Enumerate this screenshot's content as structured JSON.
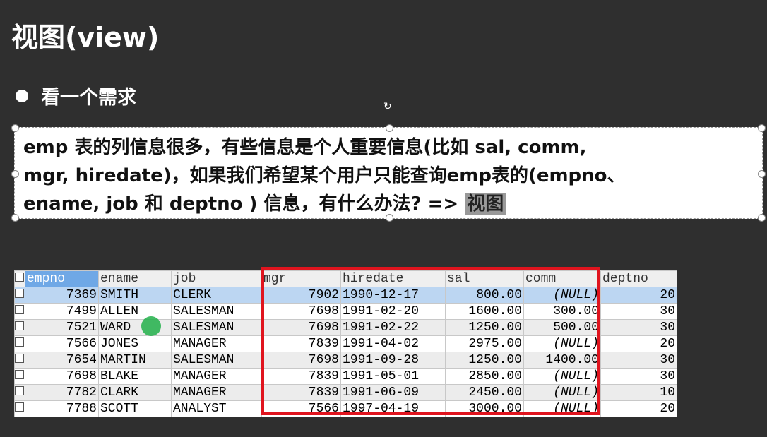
{
  "slide": {
    "title": "视图(view)",
    "bullet": "看一个需求",
    "text_lines": [
      "emp 表的列信息很多，有些信息是个人重要信息(比如 sal, comm,",
      "mgr, hiredate)，如果我们希望某个用户只能查询emp表的(empno、",
      "ename, job 和 deptno ) 信息，有什么办法? => "
    ],
    "highlight": "视图"
  },
  "table": {
    "columns": [
      "empno",
      "ename",
      "job",
      "mgr",
      "hiredate",
      "sal",
      "comm",
      "deptno"
    ],
    "rows": [
      [
        "7369",
        "SMITH",
        "CLERK",
        "7902",
        "1990-12-17",
        "800.00",
        "(NULL)",
        "20"
      ],
      [
        "7499",
        "ALLEN",
        "SALESMAN",
        "7698",
        "1991-02-20",
        "1600.00",
        "300.00",
        "30"
      ],
      [
        "7521",
        "WARD",
        "SALESMAN",
        "7698",
        "1991-02-22",
        "1250.00",
        "500.00",
        "30"
      ],
      [
        "7566",
        "JONES",
        "MANAGER",
        "7839",
        "1991-04-02",
        "2975.00",
        "(NULL)",
        "20"
      ],
      [
        "7654",
        "MARTIN",
        "SALESMAN",
        "7698",
        "1991-09-28",
        "1250.00",
        "1400.00",
        "30"
      ],
      [
        "7698",
        "BLAKE",
        "MANAGER",
        "7839",
        "1991-05-01",
        "2850.00",
        "(NULL)",
        "30"
      ],
      [
        "7782",
        "CLARK",
        "MANAGER",
        "7839",
        "1991-06-09",
        "2450.00",
        "(NULL)",
        "10"
      ],
      [
        "7788",
        "SCOTT",
        "ANALYST",
        "7566",
        "1997-04-19",
        "3000.00",
        "(NULL)",
        "20"
      ]
    ],
    "highlight_color": "#e0141e",
    "selected_row_color": "#bcd6f2"
  }
}
